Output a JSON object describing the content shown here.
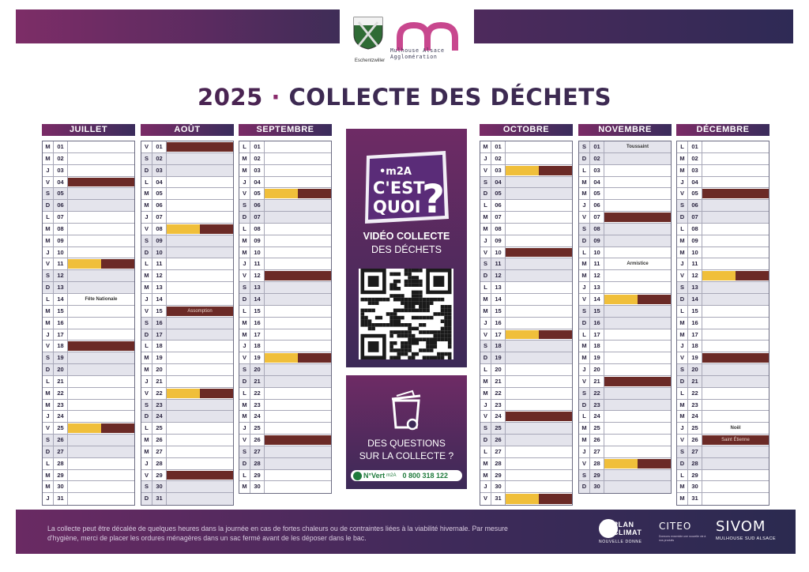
{
  "header": {
    "crest_label": "Eschentzwiller",
    "m2a_label_1": "Mulhouse Alsace",
    "m2a_label_2": "Agglomération"
  },
  "title": {
    "year": "2025",
    "separator": "·",
    "text": "COLLECTE DES DÉCHETS"
  },
  "colors": {
    "yellow_bin": "#f0bf3a",
    "brown_bin": "#6b2a26",
    "brand_purple": "#7a2b66",
    "brand_navy": "#2e2a55"
  },
  "legend_note": "cells: yellow = yellow-lid collection, brown = brown-lid collection",
  "months": [
    {
      "name": "JUILLET",
      "days": [
        [
          "M",
          "01",
          "",
          ""
        ],
        [
          "M",
          "02",
          "",
          ""
        ],
        [
          "J",
          "03",
          "",
          ""
        ],
        [
          "V",
          "04",
          "b",
          ""
        ],
        [
          "S",
          "05",
          "",
          ""
        ],
        [
          "D",
          "06",
          "",
          ""
        ],
        [
          "L",
          "07",
          "",
          ""
        ],
        [
          "M",
          "08",
          "",
          ""
        ],
        [
          "M",
          "09",
          "",
          ""
        ],
        [
          "J",
          "10",
          "",
          ""
        ],
        [
          "V",
          "11",
          "yb",
          ""
        ],
        [
          "S",
          "12",
          "",
          ""
        ],
        [
          "D",
          "13",
          "",
          ""
        ],
        [
          "L",
          "14",
          "",
          "Fête Nationale"
        ],
        [
          "M",
          "15",
          "",
          ""
        ],
        [
          "M",
          "16",
          "",
          ""
        ],
        [
          "J",
          "17",
          "",
          ""
        ],
        [
          "V",
          "18",
          "b",
          ""
        ],
        [
          "S",
          "19",
          "",
          ""
        ],
        [
          "D",
          "20",
          "",
          ""
        ],
        [
          "L",
          "21",
          "",
          ""
        ],
        [
          "M",
          "22",
          "",
          ""
        ],
        [
          "M",
          "23",
          "",
          ""
        ],
        [
          "J",
          "24",
          "",
          ""
        ],
        [
          "V",
          "25",
          "yb",
          ""
        ],
        [
          "S",
          "26",
          "",
          ""
        ],
        [
          "D",
          "27",
          "",
          ""
        ],
        [
          "L",
          "28",
          "",
          ""
        ],
        [
          "M",
          "29",
          "",
          ""
        ],
        [
          "M",
          "30",
          "",
          ""
        ],
        [
          "J",
          "31",
          "",
          ""
        ]
      ]
    },
    {
      "name": "AOÛT",
      "days": [
        [
          "V",
          "01",
          "b",
          ""
        ],
        [
          "S",
          "02",
          "",
          ""
        ],
        [
          "D",
          "03",
          "",
          ""
        ],
        [
          "L",
          "04",
          "",
          ""
        ],
        [
          "M",
          "05",
          "",
          ""
        ],
        [
          "M",
          "06",
          "",
          ""
        ],
        [
          "J",
          "07",
          "",
          ""
        ],
        [
          "V",
          "08",
          "yb",
          ""
        ],
        [
          "S",
          "09",
          "",
          ""
        ],
        [
          "D",
          "10",
          "",
          ""
        ],
        [
          "L",
          "11",
          "",
          ""
        ],
        [
          "M",
          "12",
          "",
          ""
        ],
        [
          "M",
          "13",
          "",
          ""
        ],
        [
          "J",
          "14",
          "",
          ""
        ],
        [
          "V",
          "15",
          "B",
          "Assomption"
        ],
        [
          "S",
          "16",
          "",
          ""
        ],
        [
          "D",
          "17",
          "",
          ""
        ],
        [
          "L",
          "18",
          "",
          ""
        ],
        [
          "M",
          "19",
          "",
          ""
        ],
        [
          "M",
          "20",
          "",
          ""
        ],
        [
          "J",
          "21",
          "",
          ""
        ],
        [
          "V",
          "22",
          "yb",
          ""
        ],
        [
          "S",
          "23",
          "",
          ""
        ],
        [
          "D",
          "24",
          "",
          ""
        ],
        [
          "L",
          "25",
          "",
          ""
        ],
        [
          "M",
          "26",
          "",
          ""
        ],
        [
          "M",
          "27",
          "",
          ""
        ],
        [
          "J",
          "28",
          "",
          ""
        ],
        [
          "V",
          "29",
          "b",
          ""
        ],
        [
          "S",
          "30",
          "",
          ""
        ],
        [
          "D",
          "31",
          "",
          ""
        ]
      ]
    },
    {
      "name": "SEPTEMBRE",
      "days": [
        [
          "L",
          "01",
          "",
          ""
        ],
        [
          "M",
          "02",
          "",
          ""
        ],
        [
          "M",
          "03",
          "",
          ""
        ],
        [
          "J",
          "04",
          "",
          ""
        ],
        [
          "V",
          "05",
          "yb",
          ""
        ],
        [
          "S",
          "06",
          "",
          ""
        ],
        [
          "D",
          "07",
          "",
          ""
        ],
        [
          "L",
          "08",
          "",
          ""
        ],
        [
          "M",
          "09",
          "",
          ""
        ],
        [
          "M",
          "10",
          "",
          ""
        ],
        [
          "J",
          "11",
          "",
          ""
        ],
        [
          "V",
          "12",
          "b",
          ""
        ],
        [
          "S",
          "13",
          "",
          ""
        ],
        [
          "D",
          "14",
          "",
          ""
        ],
        [
          "L",
          "15",
          "",
          ""
        ],
        [
          "M",
          "16",
          "",
          ""
        ],
        [
          "M",
          "17",
          "",
          ""
        ],
        [
          "J",
          "18",
          "",
          ""
        ],
        [
          "V",
          "19",
          "yb",
          ""
        ],
        [
          "S",
          "20",
          "",
          ""
        ],
        [
          "D",
          "21",
          "",
          ""
        ],
        [
          "L",
          "22",
          "",
          ""
        ],
        [
          "M",
          "23",
          "",
          ""
        ],
        [
          "M",
          "24",
          "",
          ""
        ],
        [
          "J",
          "25",
          "",
          ""
        ],
        [
          "V",
          "26",
          "b",
          ""
        ],
        [
          "S",
          "27",
          "",
          ""
        ],
        [
          "D",
          "28",
          "",
          ""
        ],
        [
          "L",
          "29",
          "",
          ""
        ],
        [
          "M",
          "30",
          "",
          ""
        ]
      ]
    },
    {
      "name": "OCTOBRE",
      "days": [
        [
          "M",
          "01",
          "",
          ""
        ],
        [
          "J",
          "02",
          "",
          ""
        ],
        [
          "V",
          "03",
          "yb",
          ""
        ],
        [
          "S",
          "04",
          "",
          ""
        ],
        [
          "D",
          "05",
          "",
          ""
        ],
        [
          "L",
          "06",
          "",
          ""
        ],
        [
          "M",
          "07",
          "",
          ""
        ],
        [
          "M",
          "08",
          "",
          ""
        ],
        [
          "J",
          "09",
          "",
          ""
        ],
        [
          "V",
          "10",
          "b",
          ""
        ],
        [
          "S",
          "11",
          "",
          ""
        ],
        [
          "D",
          "12",
          "",
          ""
        ],
        [
          "L",
          "13",
          "",
          ""
        ],
        [
          "M",
          "14",
          "",
          ""
        ],
        [
          "M",
          "15",
          "",
          ""
        ],
        [
          "J",
          "16",
          "",
          ""
        ],
        [
          "V",
          "17",
          "yb",
          ""
        ],
        [
          "S",
          "18",
          "",
          ""
        ],
        [
          "D",
          "19",
          "",
          ""
        ],
        [
          "L",
          "20",
          "",
          ""
        ],
        [
          "M",
          "21",
          "",
          ""
        ],
        [
          "M",
          "22",
          "",
          ""
        ],
        [
          "J",
          "23",
          "",
          ""
        ],
        [
          "V",
          "24",
          "b",
          ""
        ],
        [
          "S",
          "25",
          "",
          ""
        ],
        [
          "D",
          "26",
          "",
          ""
        ],
        [
          "L",
          "27",
          "",
          ""
        ],
        [
          "M",
          "28",
          "",
          ""
        ],
        [
          "M",
          "29",
          "",
          ""
        ],
        [
          "J",
          "30",
          "",
          ""
        ],
        [
          "V",
          "31",
          "yb",
          ""
        ]
      ]
    },
    {
      "name": "NOVEMBRE",
      "days": [
        [
          "S",
          "01",
          "",
          "Toussaint"
        ],
        [
          "D",
          "02",
          "",
          ""
        ],
        [
          "L",
          "03",
          "",
          ""
        ],
        [
          "M",
          "04",
          "",
          ""
        ],
        [
          "M",
          "05",
          "",
          ""
        ],
        [
          "J",
          "06",
          "",
          ""
        ],
        [
          "V",
          "07",
          "b",
          ""
        ],
        [
          "S",
          "08",
          "",
          ""
        ],
        [
          "D",
          "09",
          "",
          ""
        ],
        [
          "L",
          "10",
          "",
          ""
        ],
        [
          "M",
          "11",
          "",
          "Armistice"
        ],
        [
          "M",
          "12",
          "",
          ""
        ],
        [
          "J",
          "13",
          "",
          ""
        ],
        [
          "V",
          "14",
          "yb",
          ""
        ],
        [
          "S",
          "15",
          "",
          ""
        ],
        [
          "D",
          "16",
          "",
          ""
        ],
        [
          "L",
          "17",
          "",
          ""
        ],
        [
          "M",
          "18",
          "",
          ""
        ],
        [
          "M",
          "19",
          "",
          ""
        ],
        [
          "J",
          "20",
          "",
          ""
        ],
        [
          "V",
          "21",
          "b",
          ""
        ],
        [
          "S",
          "22",
          "",
          ""
        ],
        [
          "D",
          "23",
          "",
          ""
        ],
        [
          "L",
          "24",
          "",
          ""
        ],
        [
          "M",
          "25",
          "",
          ""
        ],
        [
          "M",
          "26",
          "",
          ""
        ],
        [
          "J",
          "27",
          "",
          ""
        ],
        [
          "V",
          "28",
          "yb",
          ""
        ],
        [
          "S",
          "29",
          "",
          ""
        ],
        [
          "D",
          "30",
          "",
          ""
        ]
      ]
    },
    {
      "name": "DÉCEMBRE",
      "days": [
        [
          "L",
          "01",
          "",
          ""
        ],
        [
          "M",
          "02",
          "",
          ""
        ],
        [
          "M",
          "03",
          "",
          ""
        ],
        [
          "J",
          "04",
          "",
          ""
        ],
        [
          "V",
          "05",
          "b",
          ""
        ],
        [
          "S",
          "06",
          "",
          ""
        ],
        [
          "D",
          "07",
          "",
          ""
        ],
        [
          "L",
          "08",
          "",
          ""
        ],
        [
          "M",
          "09",
          "",
          ""
        ],
        [
          "M",
          "10",
          "",
          ""
        ],
        [
          "J",
          "11",
          "",
          ""
        ],
        [
          "V",
          "12",
          "yb",
          ""
        ],
        [
          "S",
          "13",
          "",
          ""
        ],
        [
          "D",
          "14",
          "",
          ""
        ],
        [
          "L",
          "15",
          "",
          ""
        ],
        [
          "M",
          "16",
          "",
          ""
        ],
        [
          "M",
          "17",
          "",
          ""
        ],
        [
          "J",
          "18",
          "",
          ""
        ],
        [
          "V",
          "19",
          "b",
          ""
        ],
        [
          "S",
          "20",
          "",
          ""
        ],
        [
          "D",
          "21",
          "",
          ""
        ],
        [
          "L",
          "22",
          "",
          ""
        ],
        [
          "M",
          "23",
          "",
          ""
        ],
        [
          "M",
          "24",
          "",
          ""
        ],
        [
          "J",
          "25",
          "",
          "Noël"
        ],
        [
          "V",
          "26",
          "B",
          "Saint Étienne"
        ],
        [
          "S",
          "27",
          "",
          ""
        ],
        [
          "D",
          "28",
          "",
          ""
        ],
        [
          "L",
          "29",
          "",
          ""
        ],
        [
          "M",
          "30",
          "",
          ""
        ],
        [
          "M",
          "31",
          "",
          ""
        ]
      ]
    }
  ],
  "panel_video": {
    "badge_small": "•m2A",
    "badge_line1": "C'EST",
    "badge_line2": "QUOI",
    "badge_mark": "?",
    "line1": "VIDÉO COLLECTE",
    "line2": "DES DÉCHETS"
  },
  "panel_questions": {
    "line1": "DES QUESTIONS",
    "line2": "SUR LA COLLECTE ?",
    "vert_label": "N°Vert",
    "vert_brand": "m2A",
    "phone": "0 800 318 122"
  },
  "footer": {
    "text": "La collecte peut être décalée de quelques heures dans la journée en cas de fortes chaleurs ou de contraintes liées à la viabilité hivernale. Par mesure d'hygiène, merci de placer les ordures ménagères dans un sac fermé avant de les déposer dans le bac.",
    "plan_1": "PLAN",
    "plan_2": "CLIMAT",
    "plan_3": "NOUVELLE DONNE",
    "citeo": "CITEO",
    "citeo_sub": "Donnons ensemble une nouvelle vie à nos produits",
    "sivom": "SIVOM",
    "sivom_sub": "MULHOUSE SUD ALSACE"
  }
}
